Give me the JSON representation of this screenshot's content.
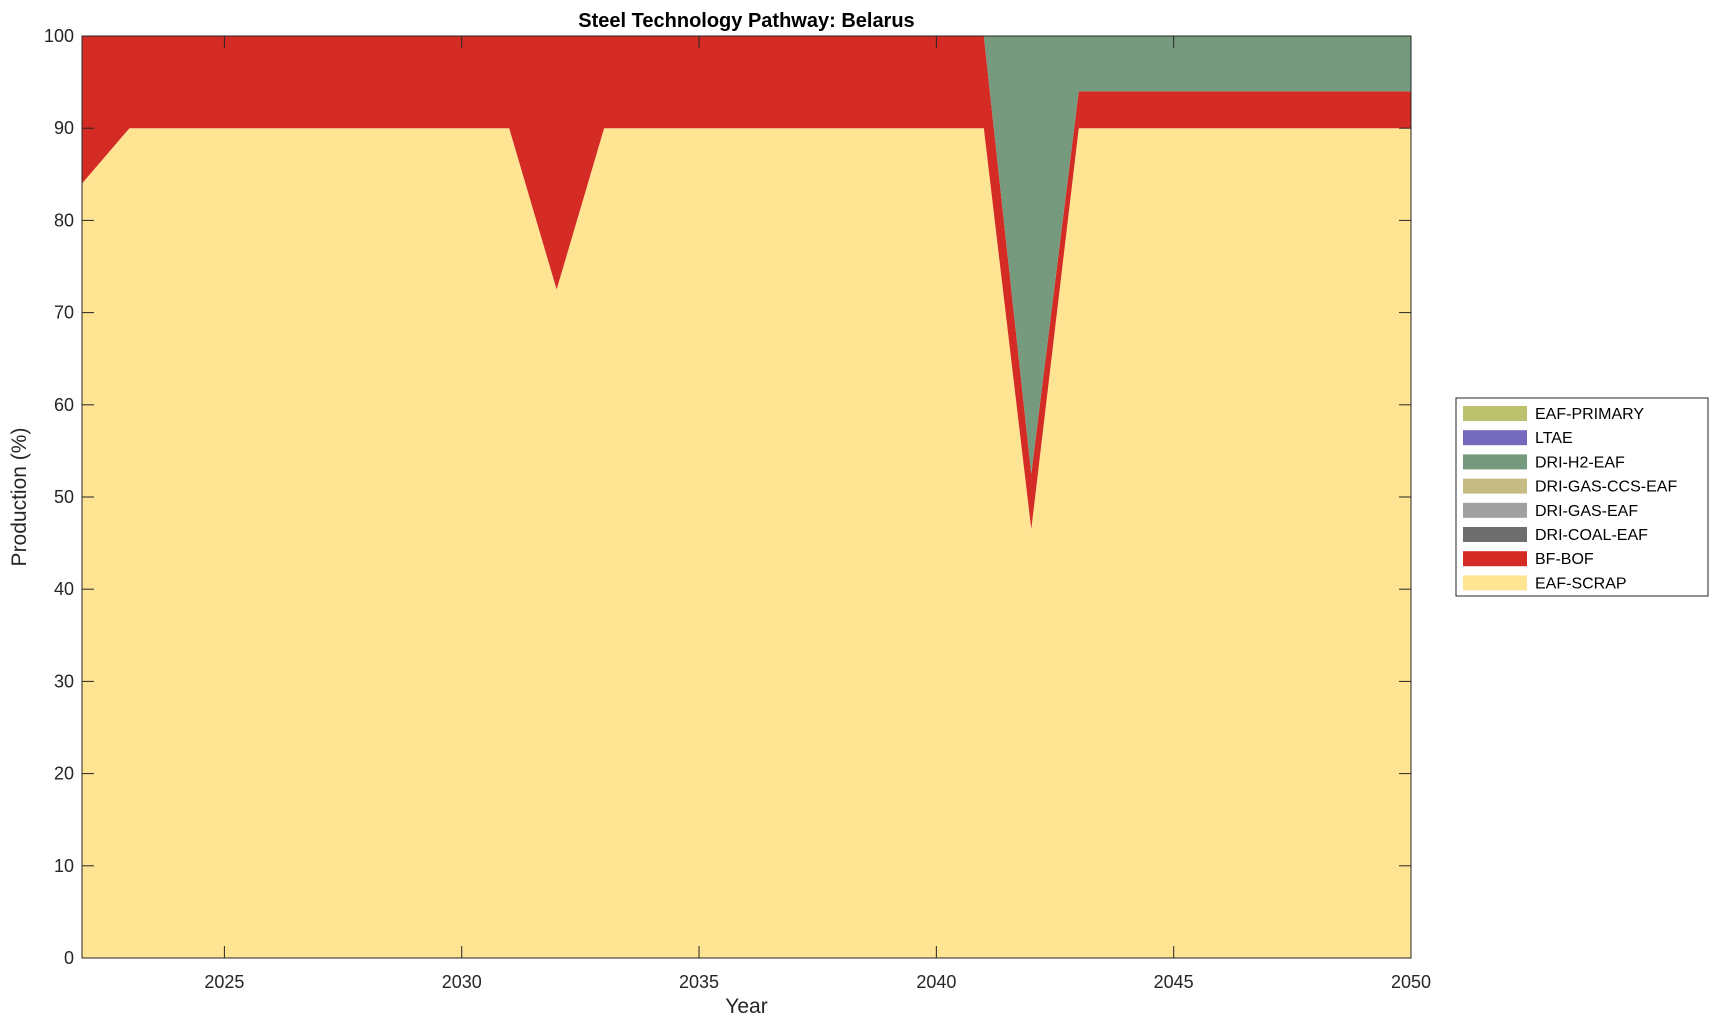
{
  "chart_data": {
    "type": "area",
    "stacked": true,
    "title": "Steel Technology Pathway: Belarus",
    "xlabel": "Year",
    "ylabel": "Production (%)",
    "xlim": [
      2022,
      2050
    ],
    "ylim": [
      0,
      100
    ],
    "x_ticks": [
      2025,
      2030,
      2035,
      2040,
      2045,
      2050
    ],
    "y_ticks": [
      0,
      10,
      20,
      30,
      40,
      50,
      60,
      70,
      80,
      90,
      100
    ],
    "legend_placement": "right",
    "x": [
      2022,
      2023,
      2024,
      2025,
      2026,
      2027,
      2028,
      2029,
      2030,
      2031,
      2032,
      2033,
      2034,
      2035,
      2036,
      2037,
      2038,
      2039,
      2040,
      2041,
      2042,
      2043,
      2044,
      2045,
      2046,
      2047,
      2048,
      2049,
      2050
    ],
    "series": [
      {
        "name": "EAF-SCRAP",
        "color": "#FFE494",
        "values": [
          84,
          90,
          90,
          90,
          90,
          90,
          90,
          90,
          90,
          90,
          72.5,
          90,
          90,
          90,
          90,
          90,
          90,
          90,
          90,
          90,
          46.5,
          90,
          90,
          90,
          90,
          90,
          90,
          90,
          90
        ]
      },
      {
        "name": "BF-BOF",
        "color": "#D42B25",
        "values": [
          16,
          10,
          10,
          10,
          10,
          10,
          10,
          10,
          10,
          10,
          27.5,
          10,
          10,
          10,
          10,
          10,
          10,
          10,
          10,
          10,
          6,
          4,
          4,
          4,
          4,
          4,
          4,
          4,
          4
        ]
      },
      {
        "name": "DRI-COAL-EAF",
        "color": "#6E6E6E",
        "values": [
          0,
          0,
          0,
          0,
          0,
          0,
          0,
          0,
          0,
          0,
          0,
          0,
          0,
          0,
          0,
          0,
          0,
          0,
          0,
          0,
          0,
          0,
          0,
          0,
          0,
          0,
          0,
          0,
          0
        ]
      },
      {
        "name": "DRI-GAS-EAF",
        "color": "#A0A0A0",
        "values": [
          0,
          0,
          0,
          0,
          0,
          0,
          0,
          0,
          0,
          0,
          0,
          0,
          0,
          0,
          0,
          0,
          0,
          0,
          0,
          0,
          0,
          0,
          0,
          0,
          0,
          0,
          0,
          0,
          0
        ]
      },
      {
        "name": "DRI-GAS-CCS-EAF",
        "color": "#C5BC84",
        "values": [
          0,
          0,
          0,
          0,
          0,
          0,
          0,
          0,
          0,
          0,
          0,
          0,
          0,
          0,
          0,
          0,
          0,
          0,
          0,
          0,
          0,
          0,
          0,
          0,
          0,
          0,
          0,
          0,
          0
        ]
      },
      {
        "name": "DRI-H2-EAF",
        "color": "#759A7E",
        "values": [
          0,
          0,
          0,
          0,
          0,
          0,
          0,
          0,
          0,
          0,
          0,
          0,
          0,
          0,
          0,
          0,
          0,
          0,
          0,
          0,
          47.5,
          6,
          6,
          6,
          6,
          6,
          6,
          6,
          6
        ]
      },
      {
        "name": "LTAE",
        "color": "#7469BC",
        "values": [
          0,
          0,
          0,
          0,
          0,
          0,
          0,
          0,
          0,
          0,
          0,
          0,
          0,
          0,
          0,
          0,
          0,
          0,
          0,
          0,
          0,
          0,
          0,
          0,
          0,
          0,
          0,
          0,
          0
        ]
      },
      {
        "name": "EAF-PRIMARY",
        "color": "#BCC26B",
        "values": [
          0,
          0,
          0,
          0,
          0,
          0,
          0,
          0,
          0,
          0,
          0,
          0,
          0,
          0,
          0,
          0,
          0,
          0,
          0,
          0,
          0,
          0,
          0,
          0,
          0,
          0,
          0,
          0,
          0
        ]
      }
    ],
    "legend_order": [
      "EAF-PRIMARY",
      "LTAE",
      "DRI-H2-EAF",
      "DRI-GAS-CCS-EAF",
      "DRI-GAS-EAF",
      "DRI-COAL-EAF",
      "BF-BOF",
      "EAF-SCRAP"
    ]
  }
}
